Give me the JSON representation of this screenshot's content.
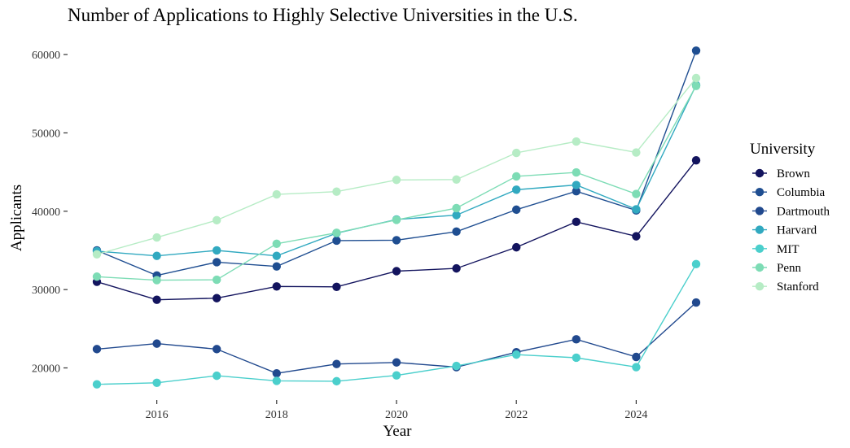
{
  "chart_data": {
    "type": "line",
    "title": "Number of Applications to Highly Selective Universities in the U.S.",
    "xlabel": "Year",
    "ylabel": "Applicants",
    "xlim": [
      2015,
      2025
    ],
    "ylim": [
      16000,
      62000
    ],
    "xticks": [
      "2016",
      "2018",
      "2020",
      "2022",
      "2024"
    ],
    "yticks": [
      "20000",
      "30000",
      "40000",
      "50000",
      "60000"
    ],
    "grid": false,
    "legend": {
      "title": "University",
      "position": "right"
    },
    "x": [
      2015,
      2016,
      2017,
      2018,
      2019,
      2020,
      2021,
      2022,
      2023,
      2024,
      2025
    ],
    "series": [
      {
        "name": "Brown",
        "color": "#13145e",
        "values": [
          31000,
          28700,
          28900,
          30400,
          30350,
          32350,
          32700,
          35400,
          38650,
          36800,
          46500
        ]
      },
      {
        "name": "Columbia",
        "color": "#1f4e91",
        "values": [
          35000,
          31800,
          33500,
          32950,
          36250,
          36300,
          37400,
          40200,
          42550,
          40100,
          60500
        ]
      },
      {
        "name": "Dartmouth",
        "color": "#21498e",
        "values": [
          22400,
          23100,
          22400,
          19300,
          20500,
          20700,
          20100,
          22000,
          23650,
          21400,
          28350
        ]
      },
      {
        "name": "Harvard",
        "color": "#31a9c0",
        "values": [
          34900,
          34300,
          35000,
          34300,
          37200,
          38950,
          39500,
          42750,
          43350,
          40250,
          56100
        ]
      },
      {
        "name": "MIT",
        "color": "#4bcfcc",
        "values": [
          17900,
          18100,
          19000,
          18350,
          18300,
          19050,
          20250,
          21700,
          21300,
          20100,
          33250
        ]
      },
      {
        "name": "Penn",
        "color": "#7ddcb5",
        "values": [
          31650,
          31200,
          31250,
          35850,
          37250,
          38900,
          40400,
          44450,
          44950,
          42200,
          56000
        ]
      },
      {
        "name": "Stanford",
        "color": "#b6ecc5",
        "values": [
          34500,
          36650,
          38850,
          42150,
          42500,
          44000,
          44050,
          47450,
          48900,
          47500,
          57000
        ]
      }
    ]
  }
}
